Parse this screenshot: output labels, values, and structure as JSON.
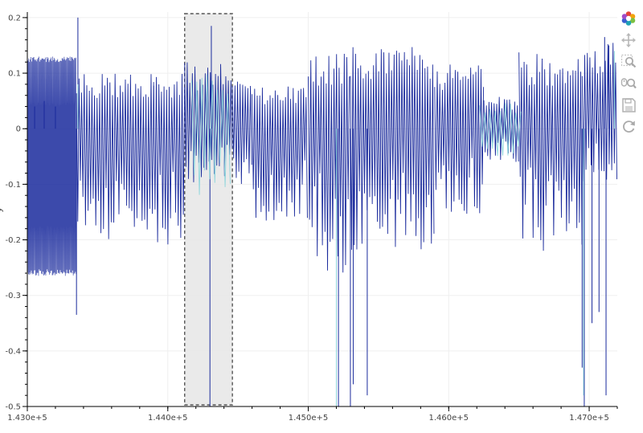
{
  "chart_data": {
    "type": "line",
    "ylabel": "y",
    "xlim": [
      143000,
      147200
    ],
    "ylim": [
      -0.5,
      0.21
    ],
    "x_ticks": [
      143000,
      144000,
      145000,
      146000,
      147000
    ],
    "x_tick_labels": [
      "1.430e+5",
      "1.440e+5",
      "1.450e+5",
      "1.460e+5",
      "1.470e+5"
    ],
    "y_ticks": [
      0.2,
      0.1,
      0,
      -0.1,
      -0.2,
      -0.3,
      -0.4,
      -0.5
    ],
    "y_tick_labels": [
      "0.2",
      "0.1",
      "0",
      "-0.1",
      "-0.2",
      "-0.3",
      "-0.4",
      "-0.5"
    ],
    "grid": true,
    "selection_box": {
      "x_start": 144120,
      "x_end": 144460,
      "y_start": -0.5,
      "y_end": 0.21
    },
    "series": [
      {
        "color": "#1a2a9c",
        "segments": [
          {
            "x_start": 143000,
            "x_end": 143350,
            "y_high": 0.13,
            "y_low": -0.265,
            "style": "dense"
          },
          {
            "x_start": 143350,
            "x_end": 143900,
            "y_high": 0.1,
            "y_low": -0.2,
            "style": "spiky"
          },
          {
            "x_start": 143900,
            "x_end": 144120,
            "y_high": 0.1,
            "y_low": -0.22,
            "style": "spiky"
          },
          {
            "x_start": 144120,
            "x_end": 144460,
            "y_high": 0.12,
            "y_low": -0.1,
            "style": "spiky"
          },
          {
            "x_start": 144460,
            "x_end": 144600,
            "y_high": 0.09,
            "y_low": -0.1,
            "style": "spiky"
          },
          {
            "x_start": 144600,
            "x_end": 145000,
            "y_high": 0.08,
            "y_low": -0.17,
            "style": "spiky"
          },
          {
            "x_start": 145000,
            "x_end": 145300,
            "y_high": 0.14,
            "y_low": -0.26,
            "style": "spiky"
          },
          {
            "x_start": 145300,
            "x_end": 145900,
            "y_high": 0.15,
            "y_low": -0.22,
            "style": "spiky"
          },
          {
            "x_start": 145900,
            "x_end": 146250,
            "y_high": 0.12,
            "y_low": -0.16,
            "style": "spiky"
          },
          {
            "x_start": 146250,
            "x_end": 146500,
            "y_high": 0.06,
            "y_low": -0.06,
            "style": "spiky"
          },
          {
            "x_start": 146500,
            "x_end": 146950,
            "y_high": 0.14,
            "y_low": -0.22,
            "style": "spiky"
          },
          {
            "x_start": 146950,
            "x_end": 147200,
            "y_high": 0.16,
            "y_low": -0.1,
            "style": "spiky"
          }
        ],
        "spikes": [
          {
            "x": 143052,
            "y": 0.04
          },
          {
            "x": 143120,
            "y": 0.05
          },
          {
            "x": 143200,
            "y": 0.04
          },
          {
            "x": 143350,
            "y": -0.335
          },
          {
            "x": 143360,
            "y": 0.2
          },
          {
            "x": 144300,
            "y": -0.5
          },
          {
            "x": 144310,
            "y": 0.185
          },
          {
            "x": 145215,
            "y": -0.5
          },
          {
            "x": 145300,
            "y": -0.5
          },
          {
            "x": 145320,
            "y": -0.46
          },
          {
            "x": 145420,
            "y": -0.48
          },
          {
            "x": 146950,
            "y": -0.43
          },
          {
            "x": 146965,
            "y": -0.5
          },
          {
            "x": 147020,
            "y": -0.35
          },
          {
            "x": 147070,
            "y": -0.33
          },
          {
            "x": 147120,
            "y": -0.48
          },
          {
            "x": 147110,
            "y": 0.165
          },
          {
            "x": 147140,
            "y": 0.15
          }
        ]
      },
      {
        "color": "#8fd6dc",
        "segments": [
          {
            "x_start": 144170,
            "x_end": 144460,
            "y_high": 0.1,
            "y_low": -0.12,
            "style": "sparse"
          },
          {
            "x_start": 146220,
            "x_end": 146520,
            "y_high": 0.05,
            "y_low": -0.05,
            "style": "sparse"
          }
        ],
        "spikes": [
          {
            "x": 143360,
            "y": 0.08
          },
          {
            "x": 145200,
            "y": -0.5
          },
          {
            "x": 146960,
            "y": -0.48
          },
          {
            "x": 147180,
            "y": 0.14
          }
        ]
      }
    ]
  },
  "toolbar": {
    "items": [
      {
        "name": "bokeh-logo-icon",
        "title": "Bokeh"
      },
      {
        "name": "pan-tool-icon",
        "title": "Pan"
      },
      {
        "name": "box-zoom-tool-icon",
        "title": "Box Zoom"
      },
      {
        "name": "wheel-zoom-tool-icon",
        "title": "Wheel Zoom"
      },
      {
        "name": "save-tool-icon",
        "title": "Save"
      },
      {
        "name": "reset-tool-icon",
        "title": "Reset"
      }
    ]
  }
}
